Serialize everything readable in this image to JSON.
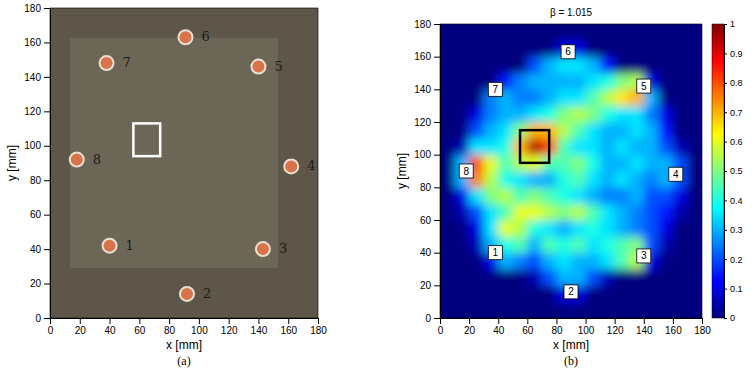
{
  "chart_data": [
    {
      "type": "photo",
      "caption": "(a)",
      "xlabel": "x [mm]",
      "ylabel": "y [mm]",
      "xlim": [
        0,
        180
      ],
      "ylim": [
        0,
        180
      ],
      "xticks": [
        0,
        20,
        40,
        60,
        80,
        100,
        120,
        140,
        160,
        180
      ],
      "yticks": [
        0,
        20,
        40,
        60,
        80,
        100,
        120,
        140,
        160,
        180
      ],
      "sensors": [
        {
          "label": "1",
          "x": 40,
          "y": 42
        },
        {
          "label": "2",
          "x": 92,
          "y": 14
        },
        {
          "label": "3",
          "x": 143,
          "y": 40
        },
        {
          "label": "4",
          "x": 162,
          "y": 88
        },
        {
          "label": "5",
          "x": 140,
          "y": 146
        },
        {
          "label": "6",
          "x": 91,
          "y": 163
        },
        {
          "label": "7",
          "x": 38,
          "y": 148
        },
        {
          "label": "8",
          "x": 18,
          "y": 92
        }
      ],
      "box": {
        "x": [
          56,
          74
        ],
        "y": [
          94,
          113
        ],
        "color": "#ffffff"
      }
    },
    {
      "type": "heatmap",
      "title": "β = 1.015",
      "caption": "(b)",
      "xlabel": "x [mm]",
      "ylabel": "y [mm]",
      "xlim": [
        0,
        180
      ],
      "ylim": [
        0,
        180
      ],
      "xticks": [
        0,
        20,
        40,
        60,
        80,
        100,
        120,
        140,
        160,
        180
      ],
      "yticks": [
        0,
        20,
        40,
        60,
        80,
        100,
        120,
        140,
        160,
        180
      ],
      "x": [
        5,
        15,
        25,
        35,
        45,
        55,
        65,
        75,
        85,
        95,
        105,
        115,
        125,
        135,
        145,
        155,
        165,
        175
      ],
      "y": [
        5,
        15,
        25,
        35,
        45,
        55,
        65,
        75,
        85,
        95,
        105,
        115,
        125,
        135,
        145,
        155,
        165,
        175
      ],
      "z": [
        [
          0,
          0,
          0,
          0,
          0,
          0,
          0,
          0,
          0,
          0,
          0,
          0,
          0,
          0,
          0,
          0,
          0,
          0
        ],
        [
          0,
          0,
          0,
          0,
          0,
          0,
          0,
          0,
          0.1,
          0.1,
          0,
          0,
          0,
          0,
          0,
          0,
          0,
          0
        ],
        [
          0,
          0,
          0,
          0,
          0,
          0,
          0.05,
          0.2,
          0.3,
          0.3,
          0.2,
          0.05,
          0,
          0,
          0,
          0,
          0,
          0
        ],
        [
          0,
          0,
          0,
          0.1,
          0.3,
          0.25,
          0.2,
          0.3,
          0.35,
          0.3,
          0.3,
          0.35,
          0.45,
          0.55,
          0.1,
          0,
          0,
          0
        ],
        [
          0,
          0,
          0.05,
          0.3,
          0.4,
          0.45,
          0.3,
          0.45,
          0.4,
          0.45,
          0.35,
          0.4,
          0.45,
          0.5,
          0.2,
          0.05,
          0,
          0
        ],
        [
          0,
          0,
          0.1,
          0.35,
          0.6,
          0.55,
          0.4,
          0.35,
          0.3,
          0.35,
          0.4,
          0.35,
          0.3,
          0.25,
          0.2,
          0.1,
          0,
          0
        ],
        [
          0,
          0.05,
          0.2,
          0.35,
          0.45,
          0.6,
          0.6,
          0.55,
          0.5,
          0.55,
          0.45,
          0.35,
          0.3,
          0.25,
          0.2,
          0.15,
          0.05,
          0
        ],
        [
          0,
          0.1,
          0.35,
          0.5,
          0.55,
          0.45,
          0.5,
          0.45,
          0.4,
          0.35,
          0.3,
          0.25,
          0.25,
          0.3,
          0.2,
          0.2,
          0.1,
          0
        ],
        [
          0,
          0.3,
          0.75,
          0.55,
          0.4,
          0.35,
          0.3,
          0.3,
          0.4,
          0.45,
          0.35,
          0.3,
          0.35,
          0.3,
          0.25,
          0.3,
          0.2,
          0
        ],
        [
          0,
          0.3,
          0.8,
          0.6,
          0.45,
          0.55,
          0.6,
          0.45,
          0.45,
          0.5,
          0.4,
          0.3,
          0.3,
          0.35,
          0.3,
          0.3,
          0.2,
          0
        ],
        [
          0,
          0.05,
          0.35,
          0.35,
          0.4,
          0.7,
          0.95,
          0.8,
          0.45,
          0.35,
          0.35,
          0.3,
          0.35,
          0.3,
          0.3,
          0.2,
          0.05,
          0
        ],
        [
          0,
          0,
          0.2,
          0.3,
          0.35,
          0.5,
          0.7,
          0.7,
          0.55,
          0.45,
          0.35,
          0.3,
          0.3,
          0.35,
          0.3,
          0.15,
          0,
          0
        ],
        [
          0,
          0,
          0.1,
          0.25,
          0.3,
          0.3,
          0.35,
          0.4,
          0.5,
          0.55,
          0.5,
          0.4,
          0.35,
          0.35,
          0.25,
          0.1,
          0,
          0
        ],
        [
          0,
          0,
          0,
          0.25,
          0.3,
          0.25,
          0.25,
          0.3,
          0.35,
          0.35,
          0.45,
          0.55,
          0.65,
          0.7,
          0.3,
          0,
          0,
          0
        ],
        [
          0,
          0,
          0,
          0,
          0.15,
          0.25,
          0.3,
          0.3,
          0.3,
          0.3,
          0.35,
          0.4,
          0.5,
          0.55,
          0.1,
          0,
          0,
          0
        ],
        [
          0,
          0,
          0,
          0,
          0,
          0,
          0.2,
          0.3,
          0.35,
          0.35,
          0.3,
          0.15,
          0,
          0,
          0,
          0,
          0,
          0
        ],
        [
          0,
          0,
          0,
          0,
          0,
          0,
          0,
          0,
          0.1,
          0.1,
          0,
          0,
          0,
          0,
          0,
          0,
          0,
          0
        ],
        [
          0,
          0,
          0,
          0,
          0,
          0,
          0,
          0,
          0,
          0,
          0,
          0,
          0,
          0,
          0,
          0,
          0,
          0
        ]
      ],
      "colorbar": {
        "range": [
          0,
          1
        ],
        "ticks": [
          0,
          0.1,
          0.2,
          0.3,
          0.4,
          0.5,
          0.6,
          0.7,
          0.8,
          0.9,
          1
        ]
      },
      "sensors": [
        {
          "label": "1",
          "x": 38,
          "y": 40
        },
        {
          "label": "2",
          "x": 90,
          "y": 16
        },
        {
          "label": "3",
          "x": 140,
          "y": 38
        },
        {
          "label": "4",
          "x": 162,
          "y": 88
        },
        {
          "label": "5",
          "x": 140,
          "y": 142
        },
        {
          "label": "6",
          "x": 88,
          "y": 163
        },
        {
          "label": "7",
          "x": 38,
          "y": 140
        },
        {
          "label": "8",
          "x": 18,
          "y": 90
        }
      ],
      "box": {
        "x": [
          55,
          75
        ],
        "y": [
          95,
          115
        ],
        "color": "#000000"
      }
    }
  ]
}
